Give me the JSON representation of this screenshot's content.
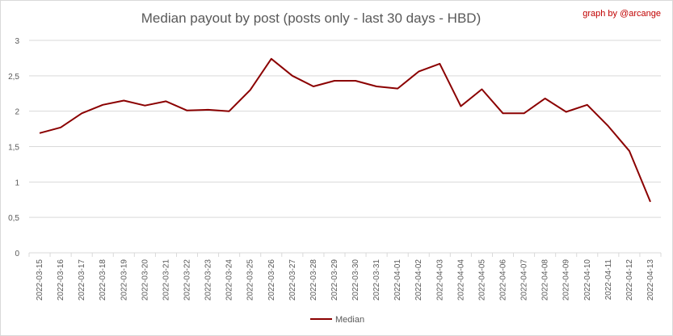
{
  "chart_data": {
    "type": "line",
    "title": "Median payout by post (posts only - last 30 days - HBD)",
    "credit": "graph by @arcange",
    "xlabel": "",
    "ylabel": "",
    "ylim": [
      0,
      3
    ],
    "yticks": [
      "0",
      "0,5",
      "1",
      "1,5",
      "2",
      "2,5",
      "3"
    ],
    "grid": true,
    "legend_position": "bottom",
    "colors": {
      "series": "#8b0000",
      "grid": "#d9d9d9",
      "axis_text": "#595959",
      "credit": "#c00000"
    },
    "x": [
      "2022-03-15",
      "2022-03-16",
      "2022-03-17",
      "2022-03-18",
      "2022-03-19",
      "2022-03-20",
      "2022-03-21",
      "2022-03-22",
      "2022-03-23",
      "2022-03-24",
      "2022-03-25",
      "2022-03-26",
      "2022-03-27",
      "2022-03-28",
      "2022-03-29",
      "2022-03-30",
      "2022-03-31",
      "2022-04-01",
      "2022-04-02",
      "2022-04-03",
      "2022-04-04",
      "2022-04-05",
      "2022-04-06",
      "2022-04-07",
      "2022-04-08",
      "2022-04-09",
      "2022-04-10",
      "2022-04-11",
      "2022-04-12",
      "2022-04-13"
    ],
    "series": [
      {
        "name": "Median",
        "values": [
          1.69,
          1.77,
          1.97,
          2.09,
          2.15,
          2.08,
          2.14,
          2.01,
          2.02,
          2.0,
          2.3,
          2.74,
          2.5,
          2.35,
          2.43,
          2.43,
          2.35,
          2.32,
          2.56,
          2.67,
          2.07,
          2.31,
          1.97,
          1.97,
          2.18,
          1.99,
          2.09,
          1.79,
          1.44,
          0.72
        ]
      }
    ]
  }
}
